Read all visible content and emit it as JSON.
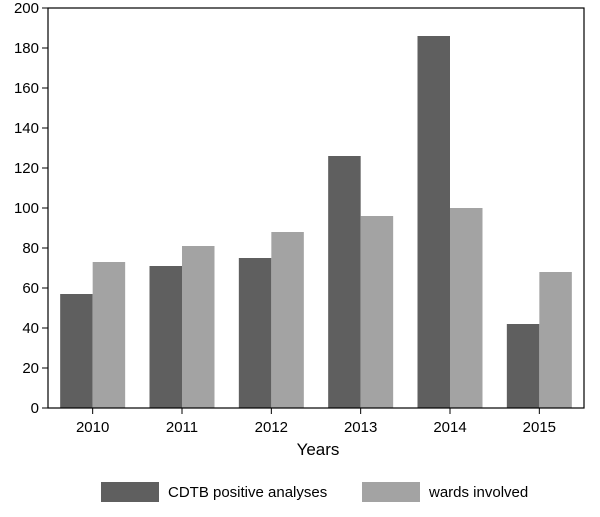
{
  "chart_data": {
    "type": "bar",
    "categories": [
      "2010",
      "2011",
      "2012",
      "2013",
      "2014",
      "2015"
    ],
    "series": [
      {
        "name": "CDTB positive analyses",
        "values": [
          57,
          71,
          75,
          126,
          186,
          42
        ],
        "color": "#5f5f5f"
      },
      {
        "name": "wards involved",
        "values": [
          73,
          81,
          88,
          96,
          100,
          68
        ],
        "color": "#a3a3a3"
      }
    ],
    "title": "",
    "xlabel": "Years",
    "ylabel": "",
    "ylim": [
      0,
      200
    ],
    "yticks": [
      "0",
      "20",
      "40",
      "60",
      "80",
      "100",
      "120",
      "140",
      "160",
      "180",
      "200"
    ],
    "grid": false,
    "legend_position": "bottom"
  }
}
